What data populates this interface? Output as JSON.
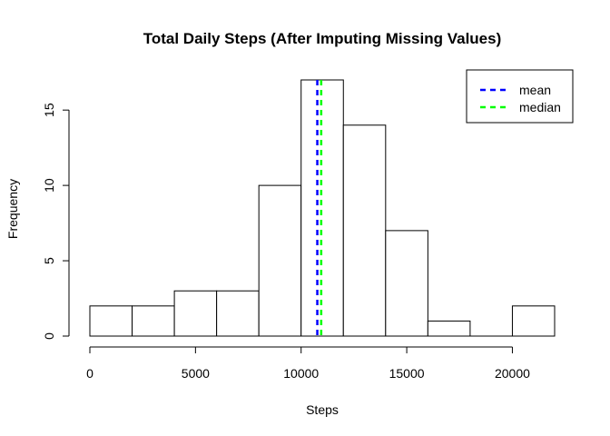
{
  "chart_data": {
    "type": "bar",
    "title": "Total Daily Steps (After Imputing Missing Values)",
    "xlabel": "Steps",
    "ylabel": "Frequency",
    "bins": [
      {
        "from": 0,
        "to": 2000,
        "count": 2
      },
      {
        "from": 2000,
        "to": 4000,
        "count": 2
      },
      {
        "from": 4000,
        "to": 6000,
        "count": 3
      },
      {
        "from": 6000,
        "to": 8000,
        "count": 3
      },
      {
        "from": 8000,
        "to": 10000,
        "count": 10
      },
      {
        "from": 10000,
        "to": 12000,
        "count": 17
      },
      {
        "from": 12000,
        "to": 14000,
        "count": 14
      },
      {
        "from": 14000,
        "to": 16000,
        "count": 7
      },
      {
        "from": 16000,
        "to": 18000,
        "count": 1
      },
      {
        "from": 18000,
        "to": 20000,
        "count": 0
      },
      {
        "from": 20000,
        "to": 22000,
        "count": 2
      }
    ],
    "xlim": [
      0,
      22000
    ],
    "ylim": [
      0,
      17
    ],
    "x_ticks": [
      0,
      5000,
      10000,
      15000,
      20000
    ],
    "y_ticks": [
      0,
      5,
      10,
      15
    ],
    "grid": false,
    "lines": [
      {
        "name": "mean",
        "value": 10766,
        "color": "#0000ff",
        "style": "dashed"
      },
      {
        "name": "median",
        "value": 10950,
        "color": "#00ff00",
        "style": "dashed"
      }
    ],
    "legend": {
      "position": "top-right",
      "entries": [
        {
          "label": "mean",
          "color": "#0000ff"
        },
        {
          "label": "median",
          "color": "#00ff00"
        }
      ]
    },
    "bar_fill": "#ffffff",
    "bar_stroke": "#000000"
  }
}
